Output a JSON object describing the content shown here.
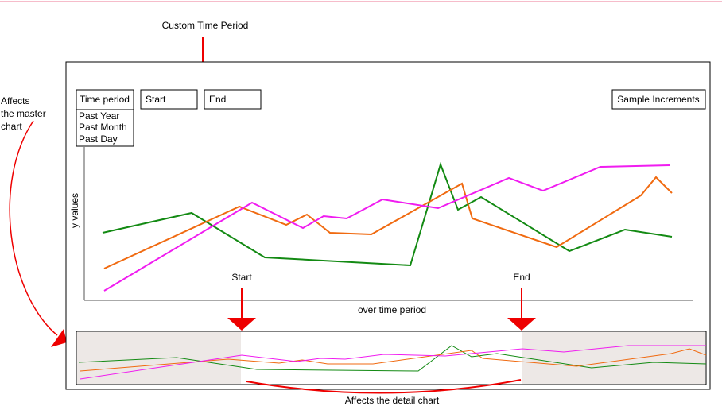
{
  "header": {
    "title": "Custom Time Period"
  },
  "side_note": {
    "lines": [
      "Affects",
      "the master",
      "chart"
    ]
  },
  "controls": {
    "time_period": "Time period",
    "start": "Start",
    "end": "End",
    "sample_increments": "Sample Increments",
    "options": [
      "Past Year",
      "Past Month",
      "Past Day"
    ]
  },
  "master_chart": {
    "y_label": "y values",
    "x_label": "over time period"
  },
  "range_markers": {
    "start": "Start",
    "end": "End"
  },
  "footer": {
    "note": "Affects the detail chart"
  }
}
